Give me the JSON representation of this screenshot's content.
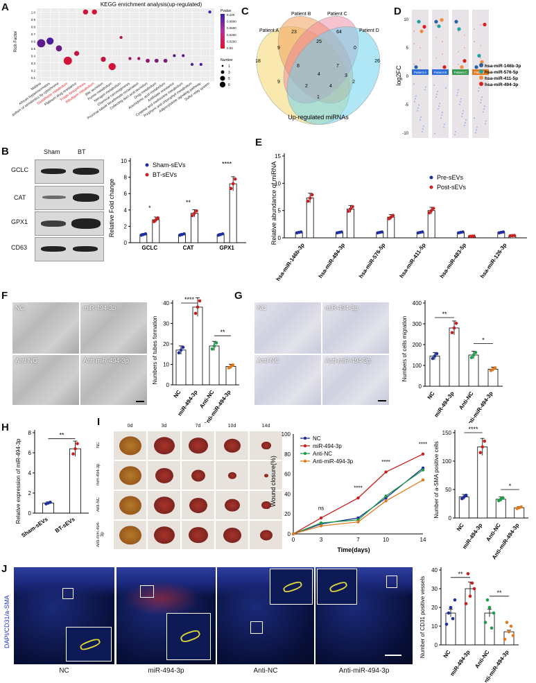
{
  "panels": {
    "A": "A",
    "B": "B",
    "C": "C",
    "D": "D",
    "E": "E",
    "F": "F",
    "G": "G",
    "H": "H",
    "I": "I",
    "J": "J"
  },
  "panelA": {
    "title": "KEGG enrichment analysis(up-regulated)",
    "ylabel": "Rich Factor",
    "yticks": [
      "0.1",
      "0.2",
      "0.3",
      "0.4",
      "0.5",
      "0.6",
      "0.7",
      "0.8",
      "0.9",
      "1.0"
    ],
    "pathways": [
      "Malaria",
      "African trypanosomiasis",
      "Metabolism of xenobiotics by cytochrome",
      "Glutathione metabolism",
      "Platinum drug resistance",
      "Folate biosynthesis",
      "Riboflavin metabolism",
      "Bile secretion",
      "Purine metabolism",
      "Nitrogen metabolism",
      "Chemical carcinogenesis",
      "Proximal tubule bicarbonate reclamation",
      "Collecting duct acid secretion",
      "Drug metabolism",
      "Arachidonic acid metabolism",
      "Antifolate resistance",
      "Cysteine and methionine metabolism",
      "Porphyrin and chlorophyll metabolism",
      "Adipocytokine signaling pathway",
      "Sulfur relay system"
    ],
    "legend_pvalue_title": "Pvalue",
    "legend_pvalue_ticks": [
      "0.100",
      "0.0800",
      "0.0600",
      "0.0400",
      "0.0200",
      "0.00"
    ],
    "legend_number_title": "Number",
    "legend_number_values": [
      "1",
      "3",
      "5",
      "6"
    ]
  },
  "panelB": {
    "blot_cols": [
      "Sham",
      "BT"
    ],
    "blot_rows": [
      "GCLC",
      "CAT",
      "GPX1",
      "CD63"
    ],
    "ylabel": "Relative Fold change",
    "legend": [
      "Sham-sEVs",
      "BT-sEVs"
    ],
    "categories": [
      "GCLC",
      "CAT",
      "GPX1"
    ],
    "sig": [
      "*",
      "**",
      "****"
    ]
  },
  "panelC": {
    "patients": [
      "Patient A",
      "Patient B",
      "Patient C",
      "Patient D"
    ],
    "caption": "Up-regulated miRNAs",
    "numbers": [
      "18",
      "23",
      "64",
      "26",
      "9",
      "25",
      "0",
      "8",
      "7",
      "4",
      "3",
      "9",
      "2",
      "4",
      "2",
      "1"
    ]
  },
  "panelD": {
    "ylabel": "log2FC",
    "patients": [
      "Patient A",
      "Patient B",
      "Patient C",
      "Patient D"
    ],
    "legend": [
      "hsa-miR-146b-3p",
      "hsa-miR-576-5p",
      "hsa-miR-411-5p",
      "hsa-miR-494-3p"
    ],
    "colors": [
      "#2b5fa8",
      "#1aa3a0",
      "#f08a3c",
      "#d61f1f"
    ],
    "yticks": [
      "10",
      "5",
      "0",
      "-5",
      "-10"
    ]
  },
  "panelE": {
    "ylabel": "Relative abundance of miRNA",
    "legend": [
      "Pre-sEVs",
      "Post-sEVs"
    ],
    "categories": [
      "hsa-miR-146b-3p",
      "hsa-miR-494-3p",
      "hsa-miR-576-5p",
      "hsa-miR-411-5p",
      "hsa-miR-483-5p",
      "hsa-miR-126-3p"
    ],
    "yticks": [
      "0",
      "5",
      "10",
      "15"
    ]
  },
  "panelF": {
    "images": [
      "NC",
      "miR-494-3p",
      "Anti-NC",
      "Anti-miR-494-3p"
    ],
    "ylabel": "Numbers of tubes formation",
    "categories": [
      "NC",
      "miR-494-3p",
      "Anti-NC",
      "Anti-miR-494-3p"
    ],
    "yticks": [
      "0",
      "10",
      "20",
      "30",
      "40"
    ],
    "sig": [
      "****",
      "**"
    ]
  },
  "panelG": {
    "images": [
      "NC",
      "miR-494-3p",
      "Anti-NC",
      "Anti-miR-494-3p"
    ],
    "ylabel": "Numbers of cells migration",
    "categories": [
      "NC",
      "miR-494-3p",
      "Anti-NC",
      "Anti-miR-494-3p"
    ],
    "yticks": [
      "0",
      "100",
      "200",
      "300",
      "400"
    ],
    "sig": [
      "**",
      "*"
    ]
  },
  "panelH": {
    "ylabel": "Relative expression of miR-494-3p",
    "categories": [
      "Sham-sEVs",
      "BT-sEVs"
    ],
    "yticks": [
      "0",
      "2",
      "4",
      "6",
      "8"
    ],
    "sig": "**"
  },
  "panelI": {
    "days": [
      "0d",
      "3d",
      "7d",
      "10d",
      "14d"
    ],
    "rows": [
      "NC",
      "miR-494-3p",
      "Anti-NC",
      "Anti-miR-494-3p"
    ],
    "line_ylabel": "Wound closure(%)",
    "line_xlabel": "Time(days)",
    "line_xticks": [
      "0",
      "3",
      "7",
      "10",
      "14"
    ],
    "line_yticks": [
      "0",
      "20",
      "40",
      "60",
      "80",
      "100"
    ],
    "legend": [
      "NC",
      "miR-494-3p",
      "Anti-NC",
      "Anti-miR-494-3p"
    ],
    "line_sig": [
      "ns",
      "****",
      "****",
      "****"
    ],
    "bar_ylabel": "Number of a-SMA positive cells",
    "bar_yticks": [
      "0",
      "50",
      "100",
      "150"
    ],
    "bar_sig": [
      "****",
      "*"
    ]
  },
  "panelJ": {
    "stain_label": "DAPI/CD31/a-SMA",
    "images": [
      "NC",
      "miR-494-3p",
      "Anti-NC",
      "Anti-miR-494-3p"
    ],
    "ylabel": "Number of CD31 positive vessels",
    "yticks": [
      "0",
      "10",
      "20",
      "30",
      "40"
    ],
    "categories": [
      "NC",
      "miR-494-3p",
      "Anti-NC",
      "Anti-miR-494-3p"
    ],
    "sig": [
      "**",
      "**"
    ]
  },
  "chart_data": [
    {
      "type": "scatter",
      "id": "A",
      "title": "KEGG enrichment analysis(up-regulated)",
      "ylabel": "Rich Factor",
      "categories": [
        "Malaria",
        "African trypanosomiasis",
        "Metabolism of xenobiotics by cytochrome",
        "Glutathione metabolism",
        "Platinum drug resistance",
        "Folate biosynthesis",
        "Riboflavin metabolism",
        "Bile secretion",
        "Purine metabolism",
        "Nitrogen metabolism",
        "Chemical carcinogenesis",
        "Proximal tubule bicarbonate reclamation",
        "Collecting duct acid secretion",
        "Drug metabolism",
        "Arachidonic acid metabolism",
        "Antifolate resistance",
        "Cysteine and methionine metabolism",
        "Porphyrin and chlorophyll metabolism",
        "Adipocytokine signaling pathway",
        "Sulfur relay system"
      ],
      "values": [
        0.57,
        0.6,
        0.5,
        0.33,
        0.43,
        1.0,
        1.0,
        0.35,
        0.25,
        0.65,
        0.36,
        0.36,
        0.33,
        0.33,
        0.33,
        0.4,
        0.4,
        0.28,
        0.28,
        1.0
      ],
      "sizes": [
        6,
        5,
        4,
        6,
        3,
        3,
        3,
        3,
        5,
        1,
        1,
        1,
        2,
        2,
        2,
        1,
        1,
        1,
        1,
        1
      ],
      "pvalue_color": [
        0.08,
        0.09,
        0.07,
        0.01,
        0.02,
        0.01,
        0.01,
        0.02,
        0.01,
        0.03,
        0.04,
        0.04,
        0.05,
        0.06,
        0.06,
        0.08,
        0.08,
        0.09,
        0.09,
        0.1
      ],
      "ylim": [
        0.1,
        1.0
      ]
    },
    {
      "type": "bar",
      "id": "B",
      "categories": [
        "GCLC",
        "CAT",
        "GPX1"
      ],
      "series": [
        {
          "name": "Sham-sEVs",
          "values": [
            1.0,
            1.0,
            1.0
          ]
        },
        {
          "name": "BT-sEVs",
          "values": [
            2.8,
            3.6,
            7.2
          ]
        }
      ],
      "ylabel": "Relative Fold change",
      "ylim": [
        0,
        10
      ]
    },
    {
      "type": "bar",
      "id": "E",
      "categories": [
        "hsa-miR-146b-3p",
        "hsa-miR-494-3p",
        "hsa-miR-576-5p",
        "hsa-miR-411-5p",
        "hsa-miR-483-5p",
        "hsa-miR-126-3p"
      ],
      "series": [
        {
          "name": "Pre-sEVs",
          "values": [
            1.0,
            1.0,
            1.0,
            1.0,
            1.0,
            1.0
          ]
        },
        {
          "name": "Post-sEVs",
          "values": [
            7.3,
            5.3,
            3.8,
            5.0,
            0.3,
            0.4
          ]
        }
      ],
      "ylabel": "Relative abundance of miRNA",
      "ylim": [
        0,
        15
      ]
    },
    {
      "type": "bar",
      "id": "F",
      "categories": [
        "NC",
        "miR-494-3p",
        "Anti-NC",
        "Anti-miR-494-3p"
      ],
      "values": [
        17,
        38,
        19,
        9
      ],
      "ylabel": "Numbers of tubes formation",
      "ylim": [
        0,
        40
      ]
    },
    {
      "type": "bar",
      "id": "G",
      "categories": [
        "NC",
        "miR-494-3p",
        "Anti-NC",
        "Anti-miR-494-3p"
      ],
      "values": [
        145,
        280,
        150,
        82
      ],
      "ylabel": "Numbers of cells migration",
      "ylim": [
        0,
        400
      ]
    },
    {
      "type": "bar",
      "id": "H",
      "categories": [
        "Sham-sEVs",
        "BT-sEVs"
      ],
      "values": [
        1.0,
        6.4
      ],
      "ylabel": "Relative expression of miR-494-3p",
      "ylim": [
        0,
        8
      ]
    },
    {
      "type": "line",
      "id": "I-line",
      "x": [
        0,
        3,
        7,
        10,
        14
      ],
      "series": [
        {
          "name": "NC",
          "values": [
            0,
            10,
            16,
            36,
            66
          ]
        },
        {
          "name": "miR-494-3p",
          "values": [
            0,
            16,
            36,
            62,
            80
          ]
        },
        {
          "name": "Anti-NC",
          "values": [
            0,
            11,
            14,
            38,
            64
          ]
        },
        {
          "name": "Anti-miR-494-3p",
          "values": [
            0,
            8,
            12,
            33,
            54
          ]
        }
      ],
      "xlabel": "Time(days)",
      "ylabel": "Wound closure(%)",
      "ylim": [
        0,
        100
      ]
    },
    {
      "type": "bar",
      "id": "I-bar",
      "categories": [
        "NC",
        "miR-494-3p",
        "Anti-NC",
        "Anti-miR-494-3p"
      ],
      "values": [
        37,
        125,
        33,
        18
      ],
      "ylabel": "Number of a-SMA positive cells",
      "ylim": [
        0,
        150
      ]
    },
    {
      "type": "bar",
      "id": "J",
      "categories": [
        "NC",
        "miR-494-3p",
        "Anti-NC",
        "Anti-miR-494-3p"
      ],
      "values": [
        17,
        30,
        17,
        7
      ],
      "ylabel": "Number of CD31 positive vessels",
      "ylim": [
        0,
        40
      ]
    }
  ]
}
